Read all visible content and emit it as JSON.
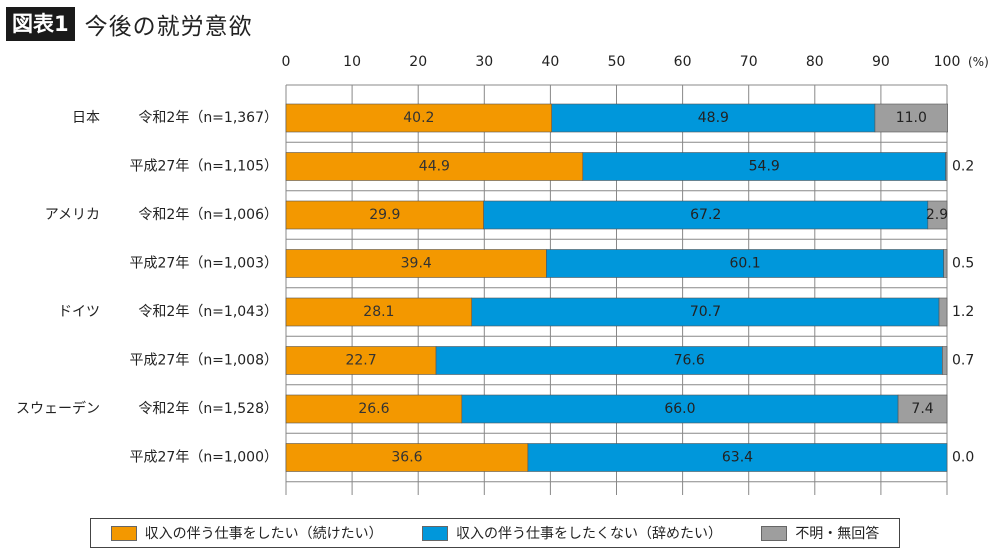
{
  "header": {
    "tag": "図表1",
    "title": "今後の就労意欲"
  },
  "colors": {
    "continue": "#f39800",
    "quit": "#0097db",
    "unknown": "#9e9e9e",
    "grid": "#888888"
  },
  "chart_data": {
    "type": "bar",
    "orientation": "horizontal",
    "stacked": true,
    "title": "今後の就労意欲",
    "xlim": [
      0,
      100
    ],
    "x_ticks": [
      "0",
      "10",
      "20",
      "30",
      "40",
      "50",
      "60",
      "70",
      "80",
      "90",
      "100"
    ],
    "x_unit": "(%)",
    "groups": [
      "日本",
      "アメリカ",
      "ドイツ",
      "スウェーデン"
    ],
    "categories": [
      "令和2年（n=1,367）",
      "平成27年（n=1,105）",
      "令和2年（n=1,006）",
      "平成27年（n=1,003）",
      "令和2年（n=1,043）",
      "平成27年（n=1,008）",
      "令和2年（n=1,528）",
      "平成27年（n=1,000）"
    ],
    "series": [
      {
        "name": "収入の伴う仕事をしたい（続けたい）",
        "values": [
          40.2,
          44.9,
          29.9,
          39.4,
          28.1,
          22.7,
          26.6,
          36.6
        ]
      },
      {
        "name": "収入の伴う仕事をしたくない（辞めたい）",
        "values": [
          48.9,
          54.9,
          67.2,
          60.1,
          70.7,
          76.6,
          66.0,
          63.4
        ]
      },
      {
        "name": "不明・無回答",
        "values": [
          11.0,
          0.2,
          2.9,
          0.5,
          1.2,
          0.7,
          7.4,
          0.0
        ]
      }
    ],
    "value_labels": {
      "continue": [
        "40.2",
        "44.9",
        "29.9",
        "39.4",
        "28.1",
        "22.7",
        "26.6",
        "36.6"
      ],
      "quit": [
        "48.9",
        "54.9",
        "67.2",
        "60.1",
        "70.7",
        "76.6",
        "66.0",
        "63.4"
      ],
      "unknown": [
        "11.0",
        "0.2",
        "2.9",
        "0.5",
        "1.2",
        "0.7",
        "7.4",
        "0.0"
      ]
    },
    "legend": [
      "収入の伴う仕事をしたい（続けたい）",
      "収入の伴う仕事をしたくない（辞めたい）",
      "不明・無回答"
    ]
  }
}
